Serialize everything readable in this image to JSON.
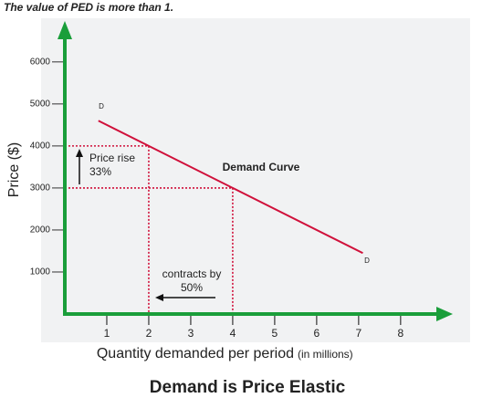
{
  "chart_data": {
    "type": "line",
    "title": "The value of PED is more than 1.",
    "caption": "Demand is Price Elastic",
    "x_label": "Quantity demanded per period",
    "x_label_unit": "(in millions)",
    "y_label": "Price ($)",
    "series": [
      {
        "name": "Demand Curve",
        "color": "#d0103a",
        "x": [
          0.8,
          2,
          4,
          7.1
        ],
        "values": [
          4600,
          4000,
          3000,
          1450
        ]
      }
    ],
    "guides": [
      {
        "x": 2,
        "y": 4000
      },
      {
        "x": 4,
        "y": 3000
      }
    ],
    "guide_color": "#d0103a",
    "axis_color": "#1a9e3a",
    "xlim": [
      0,
      9.2
    ],
    "ylim": [
      0,
      6800
    ],
    "xticks": [
      1,
      2,
      3,
      4,
      5,
      6,
      7,
      8
    ],
    "yticks": [
      1000,
      2000,
      3000,
      4000,
      5000,
      6000
    ],
    "annotations": {
      "start": "D",
      "end": "D",
      "price_rise": "Price rise",
      "price_rise_pct": "33%",
      "contracts": "contracts by",
      "contracts_pct": "50%"
    }
  }
}
